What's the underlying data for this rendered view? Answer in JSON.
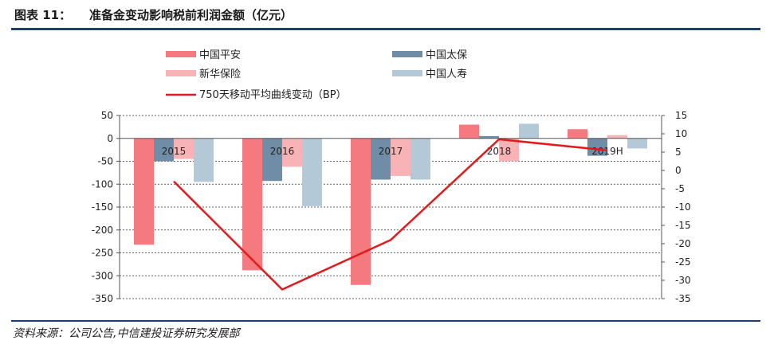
{
  "header": {
    "figure_label": "图表 11：",
    "title": "准备金变动影响税前利润金额（亿元）"
  },
  "source": "资料来源：公司公告,中信建投证券研究发展部",
  "chart_data": {
    "type": "bar",
    "categories": [
      "2015",
      "2016",
      "2017",
      "2018",
      "2019H"
    ],
    "series": [
      {
        "name": "中国平安",
        "type": "bar",
        "axis": "left",
        "color": "#f47a80",
        "values": [
          -232,
          -288,
          -320,
          30,
          20
        ]
      },
      {
        "name": "中国太保",
        "type": "bar",
        "axis": "left",
        "color": "#6f8da7",
        "values": [
          -50,
          -93,
          -90,
          5,
          -38
        ]
      },
      {
        "name": "新华保险",
        "type": "bar",
        "axis": "left",
        "color": "#f7b3b6",
        "values": [
          -45,
          -62,
          -82,
          -50,
          7
        ]
      },
      {
        "name": "中国人寿",
        "type": "bar",
        "axis": "left",
        "color": "#b4c9d8",
        "values": [
          -95,
          -148,
          -90,
          32,
          -22
        ]
      },
      {
        "name": "750天移动平均曲线变动（BP）",
        "type": "line",
        "axis": "right",
        "color": "#e31a1c",
        "values": [
          -3,
          -32.5,
          -19,
          8.5,
          5.5
        ]
      }
    ],
    "y_left": {
      "min": -350,
      "max": 50,
      "ticks": [
        50,
        0,
        -50,
        -100,
        -150,
        -200,
        -250,
        -300,
        -350
      ]
    },
    "y_right": {
      "min": -35,
      "max": 15,
      "ticks": [
        15,
        10,
        5,
        0,
        -5,
        -10,
        -15,
        -20,
        -25,
        -30,
        -35
      ]
    },
    "grid": "horizontal-dashed",
    "legend": "top"
  }
}
